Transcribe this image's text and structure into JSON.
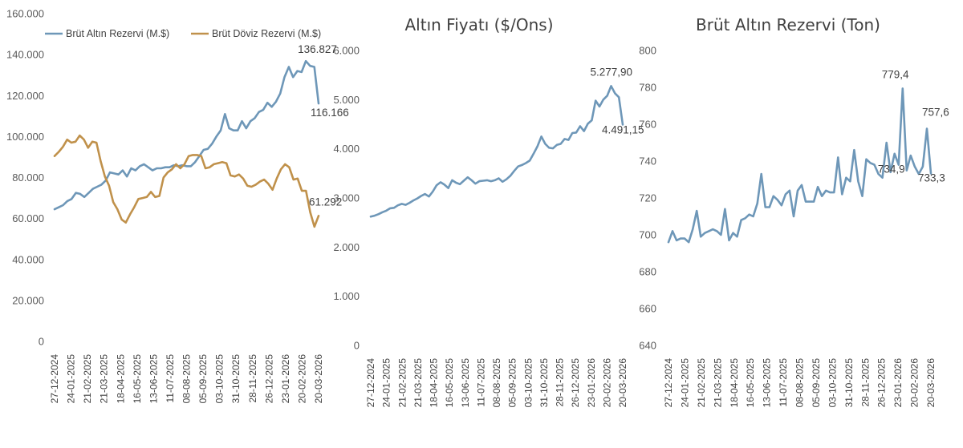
{
  "chart_data": [
    {
      "type": "line",
      "title": "",
      "ylim": [
        0,
        160000
      ],
      "yticks": [
        "0",
        "20.000",
        "40.000",
        "60.000",
        "80.000",
        "100.000",
        "120.000",
        "140.000",
        "160.000"
      ],
      "tick_dates": [
        "27-12-2024",
        "24-01-2025",
        "21-02-2025",
        "21-03-2025",
        "18-04-2025",
        "16-05-2025",
        "13-06-2025",
        "11-07-2025",
        "08-08-2025",
        "05-09-2025",
        "03-10-2025",
        "31-10-2025",
        "28-11-2025",
        "26-12-2025",
        "23-01-2026",
        "20-02-2026",
        "20-03-2026"
      ],
      "series": [
        {
          "name": "Brüt Altın Rezervi (M.$)",
          "color": "#6e97b8",
          "values": [
            64500,
            65500,
            66500,
            68500,
            69500,
            72500,
            72000,
            70500,
            72500,
            74500,
            75500,
            76500,
            78500,
            82500,
            82000,
            81500,
            83500,
            80500,
            84500,
            83500,
            85500,
            86500,
            85000,
            83500,
            84500,
            84500,
            85000,
            85000,
            86000,
            85500,
            86000,
            85500,
            85500,
            87500,
            90500,
            93500,
            94000,
            96500,
            100000,
            103000,
            111000,
            104000,
            103000,
            103000,
            107500,
            104000,
            107500,
            109000,
            112000,
            113000,
            116500,
            114500,
            117000,
            121000,
            129000,
            134000,
            129000,
            132000,
            131500,
            136827,
            134500,
            134000,
            116166
          ],
          "labels": [
            {
              "i": 59,
              "text": "136.827"
            },
            {
              "i": 62,
              "text": "116.166"
            }
          ]
        },
        {
          "name": "Brüt Döviz Rezervi (M.$)",
          "color": "#c0914b",
          "values": [
            90500,
            92500,
            95000,
            98500,
            97000,
            97500,
            100500,
            98500,
            94500,
            97500,
            97000,
            88000,
            80500,
            76000,
            68000,
            64500,
            59500,
            58000,
            62000,
            65500,
            69500,
            70000,
            70500,
            73000,
            70500,
            71000,
            80000,
            82500,
            84000,
            86500,
            84500,
            86500,
            90500,
            91000,
            91000,
            90500,
            84500,
            85000,
            86500,
            87000,
            87500,
            87000,
            81000,
            80500,
            81500,
            79500,
            76000,
            75500,
            76500,
            78000,
            79000,
            77000,
            74000,
            79500,
            84000,
            86500,
            85000,
            79000,
            79500,
            73500,
            73500,
            63000,
            56000,
            61292
          ],
          "labels": [
            {
              "i": 63,
              "text": "61.292"
            }
          ]
        }
      ]
    },
    {
      "type": "line",
      "title": "Altın Fiyatı ($/Ons)",
      "ylim": [
        0,
        6000
      ],
      "yticks": [
        "0",
        "1.000",
        "2.000",
        "3.000",
        "4.000",
        "5.000",
        "6.000"
      ],
      "tick_dates": [
        "27-12-2024",
        "24-01-2025",
        "21-02-2025",
        "21-03-2025",
        "18-04-2025",
        "16-05-2025",
        "13-06-2025",
        "11-07-2025",
        "08-08-2025",
        "05-09-2025",
        "03-10-2025",
        "31-10-2025",
        "28-11-2025",
        "26-12-2025",
        "23-01-2026",
        "20-02-2026",
        "20-03-2026"
      ],
      "series": [
        {
          "name": "Altın Fiyatı",
          "color": "#6e97b8",
          "values": [
            2620,
            2640,
            2670,
            2710,
            2740,
            2790,
            2800,
            2850,
            2880,
            2860,
            2900,
            2950,
            2990,
            3040,
            3080,
            3030,
            3130,
            3260,
            3320,
            3270,
            3200,
            3360,
            3310,
            3280,
            3350,
            3420,
            3360,
            3290,
            3340,
            3350,
            3360,
            3340,
            3360,
            3400,
            3330,
            3380,
            3450,
            3550,
            3640,
            3670,
            3710,
            3760,
            3900,
            4050,
            4250,
            4100,
            4020,
            4010,
            4080,
            4100,
            4200,
            4180,
            4320,
            4330,
            4460,
            4360,
            4510,
            4580,
            4980,
            4860,
            5000,
            5080,
            5277.9,
            5130,
            5050,
            4491.15
          ],
          "labels": [
            {
              "i": 62,
              "text": "5.277,90"
            },
            {
              "i": 65,
              "text": "4.491,15"
            }
          ]
        }
      ]
    },
    {
      "type": "line",
      "title": "Brüt Altın Rezervi (Ton)",
      "ylim": [
        640,
        800
      ],
      "yticks": [
        "640",
        "660",
        "680",
        "700",
        "720",
        "740",
        "760",
        "780",
        "800"
      ],
      "tick_dates": [
        "27-12-2024",
        "24-01-2025",
        "21-02-2025",
        "21-03-2025",
        "18-04-2025",
        "16-05-2025",
        "13-06-2025",
        "11-07-2025",
        "08-08-2025",
        "05-09-2025",
        "03-10-2025",
        "31-10-2025",
        "28-11-2025",
        "26-12-2025",
        "23-01-2026",
        "20-02-2026",
        "20-03-2026"
      ],
      "series": [
        {
          "name": "Brüt Altın Rezervi (Ton)",
          "color": "#6e97b8",
          "values": [
            696,
            702,
            697,
            698,
            698,
            696,
            703,
            713,
            699,
            701,
            702,
            703,
            702,
            700,
            714,
            697,
            701,
            699,
            708,
            709,
            711,
            710,
            717,
            733,
            715,
            715,
            721,
            719,
            716,
            722,
            724,
            710,
            724,
            727,
            718,
            718,
            718,
            726,
            721,
            724,
            723,
            723,
            742,
            722,
            731,
            729,
            746,
            729,
            721,
            741,
            739,
            738,
            733,
            731,
            750,
            734,
            744,
            738,
            779.4,
            734.9,
            743,
            737,
            733,
            737,
            757.6,
            733.3
          ],
          "labels": [
            {
              "i": 58,
              "text": "779,4"
            },
            {
              "i": 59,
              "text": "734,9"
            },
            {
              "i": 64,
              "text": "757,6"
            },
            {
              "i": 65,
              "text": "733,3"
            }
          ]
        }
      ]
    }
  ]
}
